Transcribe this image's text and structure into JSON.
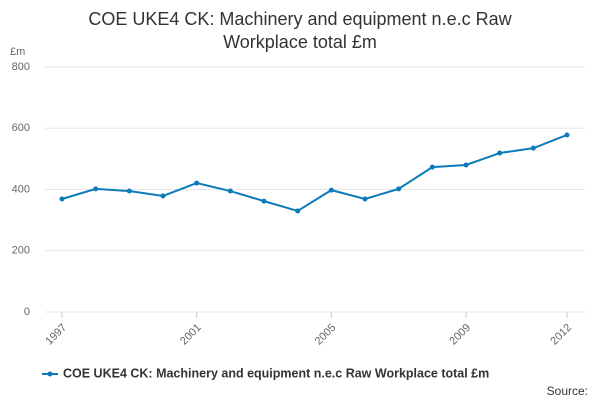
{
  "chart_data": {
    "type": "line",
    "title": "COE UKE4 CK: Machinery and equipment n.e.c Raw Workplace total £m",
    "y_label": "£m",
    "x": [
      1997,
      1998,
      1999,
      2000,
      2001,
      2002,
      2003,
      2004,
      2005,
      2006,
      2007,
      2008,
      2009,
      2010,
      2011,
      2012
    ],
    "series": [
      {
        "name": "COE UKE4 CK: Machinery and equipment n.e.c Raw Workplace total £m",
        "color": "#0c7bb9",
        "values": [
          369,
          402,
          395,
          379,
          421,
          395,
          362,
          330,
          398,
          369,
          402,
          473,
          480,
          519,
          535,
          578
        ]
      }
    ],
    "xlim": [
      1997,
      2012
    ],
    "xticks": [
      1997,
      2001,
      2005,
      2009,
      2012
    ],
    "ylim": [
      0,
      800
    ],
    "yticks": [
      0,
      200,
      400,
      600,
      800
    ],
    "grid": true,
    "source": "Source:"
  }
}
